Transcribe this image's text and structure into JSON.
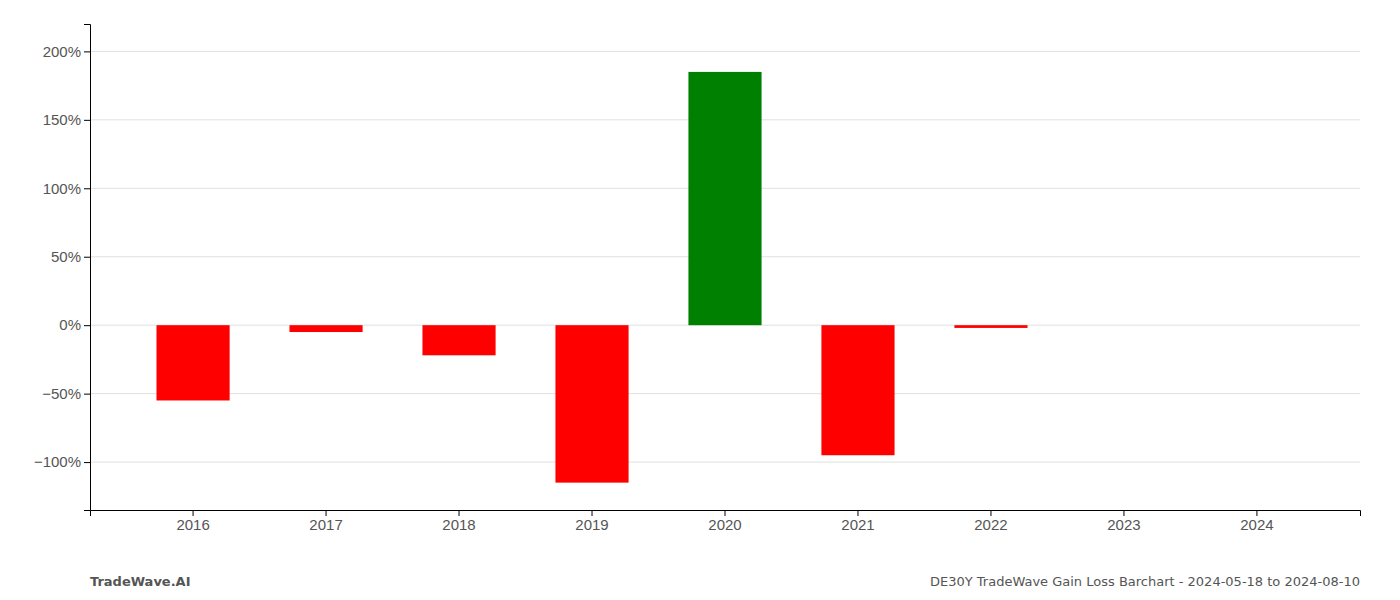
{
  "chart_data": {
    "type": "bar",
    "categories": [
      "2016",
      "2017",
      "2018",
      "2019",
      "2020",
      "2021",
      "2022",
      "2023",
      "2024"
    ],
    "values": [
      -55,
      -5,
      -22,
      -115,
      185,
      -95,
      -2,
      0,
      0
    ],
    "colors": [
      "#ff0000",
      "#ff0000",
      "#ff0000",
      "#ff0000",
      "#008000",
      "#ff0000",
      "#ff0000",
      "#ff0000",
      "#ff0000"
    ],
    "ylim": [
      -135,
      220
    ],
    "yticks": [
      {
        "value": -100,
        "label": "−100%"
      },
      {
        "value": -50,
        "label": "−50%"
      },
      {
        "value": 0,
        "label": "0%"
      },
      {
        "value": 50,
        "label": "50%"
      },
      {
        "value": 100,
        "label": "100%"
      },
      {
        "value": 150,
        "label": "150%"
      },
      {
        "value": 200,
        "label": "200%"
      }
    ],
    "grid": true,
    "annotations": [
      "TradeWave.AI",
      "DE30Y TradeWave Gain Loss Barchart - 2024-05-18 to 2024-08-10"
    ]
  }
}
